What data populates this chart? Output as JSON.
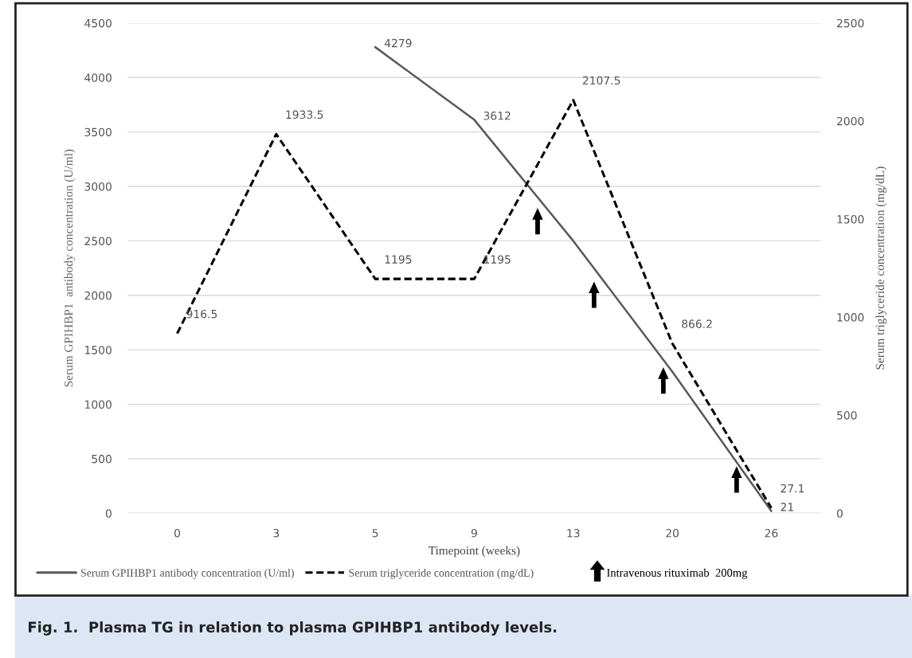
{
  "chart_data": {
    "type": "line",
    "categories": [
      "0",
      "3",
      "5",
      "9",
      "13",
      "20",
      "26"
    ],
    "xlabel": "Timepoint (weeks)",
    "ylabel": "Serum GPIHBP1  antibody concentration (U/ml)",
    "y2label": "Serum triglyceride concentration (mg/dL)",
    "series": [
      {
        "name": "Serum GPIHBP1 antibody concentration (U/ml)",
        "color": "#595959",
        "line_style": "solid",
        "values": [
          null,
          null,
          4279,
          3612,
          2500,
          1300,
          21
        ],
        "value_labels": [
          null,
          null,
          "4279",
          "3612",
          null,
          null,
          "21"
        ]
      },
      {
        "name": "Serum triglyceride concentration (mg/dL)",
        "color": "#000000",
        "line_style": "dashed",
        "axis": "y2",
        "values": [
          916.5,
          1933.5,
          1195,
          1195,
          2107.5,
          866.2,
          27.1
        ],
        "value_labels": [
          "916.5",
          "1933.5",
          "1195",
          "1195",
          "2107.5",
          "866.2",
          "27.1"
        ]
      }
    ],
    "ylim": [
      0,
      4500
    ],
    "yticks": [
      0,
      500,
      1000,
      1500,
      2000,
      2500,
      3000,
      3500,
      4000,
      4500
    ],
    "y2lim": [
      0,
      2500
    ],
    "y2ticks": [
      0,
      500,
      1000,
      1500,
      2000,
      2500
    ],
    "grid": "y",
    "legend": "bottom",
    "marker": "none",
    "annotations": [
      "Intravenous rituximab  200mg",
      "Fig. 1.  Plasma TG in relation to plasma GPIHBP1 antibody levels."
    ]
  }
}
